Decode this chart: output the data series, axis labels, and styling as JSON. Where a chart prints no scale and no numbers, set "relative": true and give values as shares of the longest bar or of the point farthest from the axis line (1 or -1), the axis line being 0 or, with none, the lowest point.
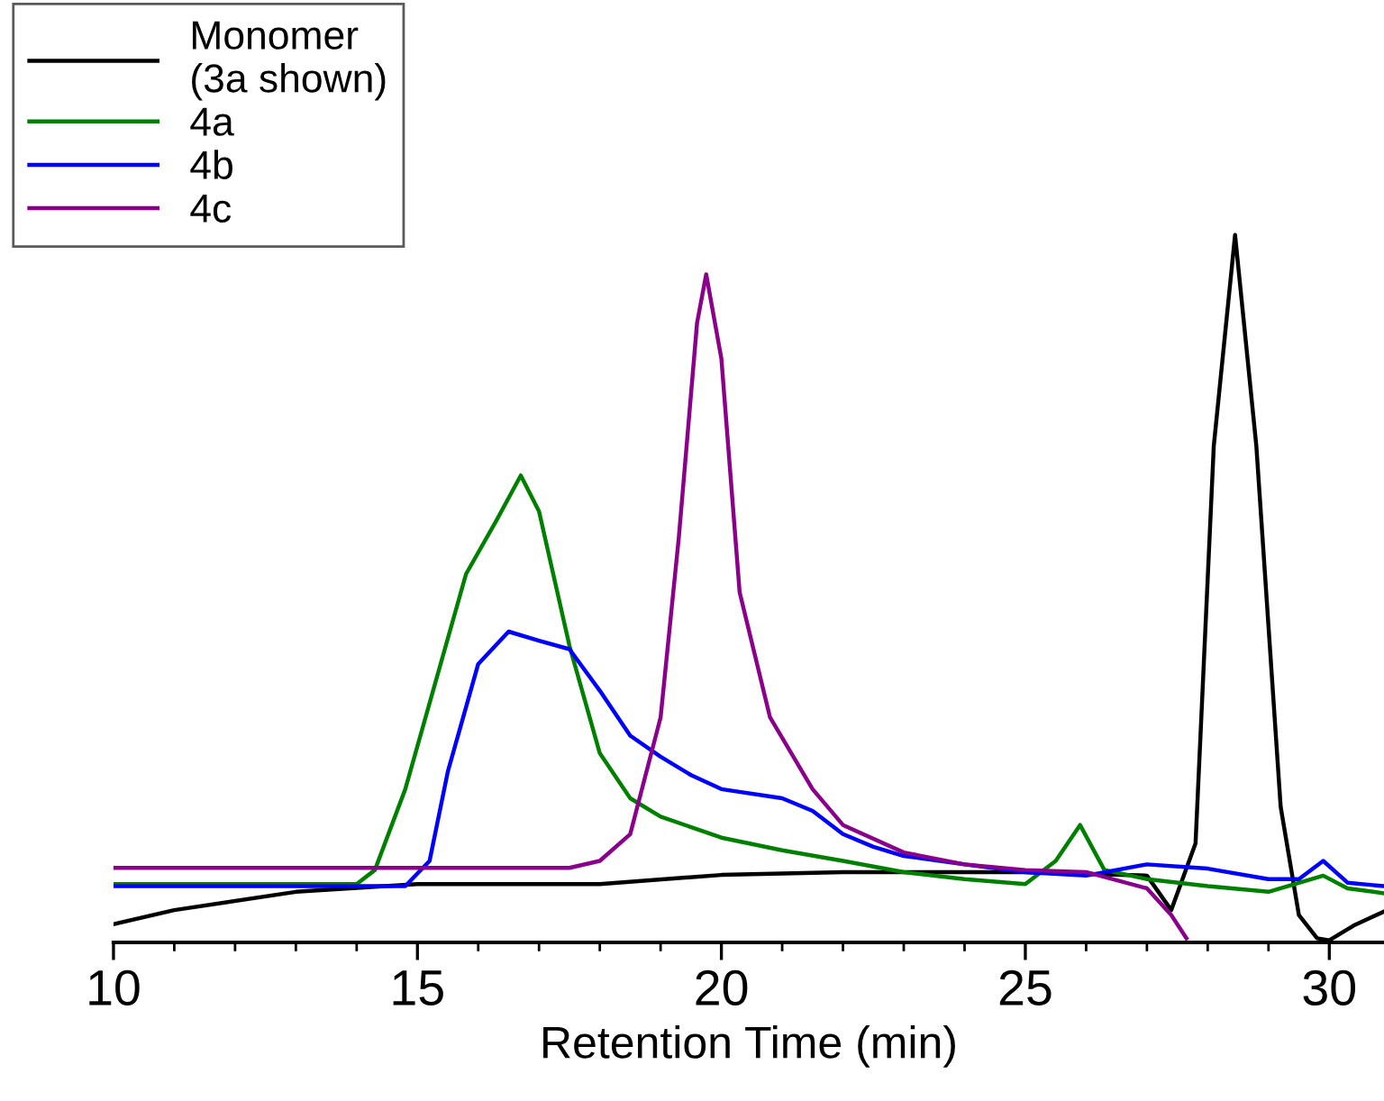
{
  "chart_data": {
    "type": "line",
    "relative": true,
    "xlabel": "Retention Time (min)",
    "xlim": [
      10,
      30.9
    ],
    "xticks": [
      10,
      15,
      20,
      25,
      30
    ],
    "grid": false,
    "legend": "top left",
    "marker": "none",
    "line_style": "solid",
    "series": [
      {
        "name": "Monomer\n(3a shown)",
        "color": "#000000",
        "x": [
          10,
          11,
          13,
          15,
          18,
          20,
          22,
          25,
          27,
          27.4,
          27.8,
          28.1,
          28.45,
          28.8,
          29.2,
          29.5,
          29.8,
          30.0,
          30.4,
          30.9
        ],
        "values": [
          0.02,
          0.04,
          0.066,
          0.077,
          0.077,
          0.09,
          0.094,
          0.094,
          0.089,
          0.04,
          0.135,
          0.7,
          1.0,
          0.7,
          0.187,
          0.033,
          0,
          -0.003,
          0.018,
          0.038
        ]
      },
      {
        "name": "4a",
        "color": "#008000",
        "x": [
          10,
          14,
          14.3,
          14.8,
          15.3,
          15.8,
          16.3,
          16.7,
          17.0,
          17.5,
          18,
          18.5,
          19,
          20,
          21,
          22,
          23,
          24,
          25,
          25.5,
          25.9,
          26.3,
          27,
          28,
          29,
          29.9,
          30.3,
          30.9
        ],
        "values": [
          0.077,
          0.077,
          0.097,
          0.212,
          0.365,
          0.518,
          0.594,
          0.658,
          0.607,
          0.416,
          0.263,
          0.199,
          0.173,
          0.143,
          0.125,
          0.11,
          0.094,
          0.084,
          0.077,
          0.11,
          0.161,
          0.097,
          0.084,
          0.074,
          0.066,
          0.089,
          0.071,
          0.064
        ]
      },
      {
        "name": "4b",
        "color": "#0000ff",
        "x": [
          10,
          14.8,
          15.2,
          15.5,
          16,
          16.5,
          17,
          17.5,
          18,
          18.5,
          19,
          19.5,
          20,
          21,
          21.5,
          22,
          22.5,
          23,
          24,
          25,
          26,
          27,
          28,
          29,
          29.5,
          29.9,
          30.3,
          30.9
        ],
        "values": [
          0.074,
          0.074,
          0.11,
          0.237,
          0.39,
          0.436,
          0.423,
          0.411,
          0.352,
          0.288,
          0.258,
          0.232,
          0.212,
          0.199,
          0.181,
          0.148,
          0.13,
          0.117,
          0.105,
          0.094,
          0.089,
          0.105,
          0.099,
          0.084,
          0.084,
          0.11,
          0.079,
          0.074
        ]
      },
      {
        "name": "4c",
        "color": "#8b008b",
        "x": [
          10,
          17.5,
          18,
          18.5,
          19,
          19.3,
          19.6,
          19.75,
          20,
          20.3,
          20.8,
          21.5,
          22,
          23,
          24,
          25,
          26,
          27,
          27.4,
          27.65
        ],
        "values": [
          0.1,
          0.1,
          0.11,
          0.148,
          0.314,
          0.57,
          0.875,
          0.944,
          0.824,
          0.492,
          0.314,
          0.212,
          0.161,
          0.122,
          0.105,
          0.097,
          0.094,
          0.071,
          0.033,
          0
        ]
      }
    ]
  }
}
